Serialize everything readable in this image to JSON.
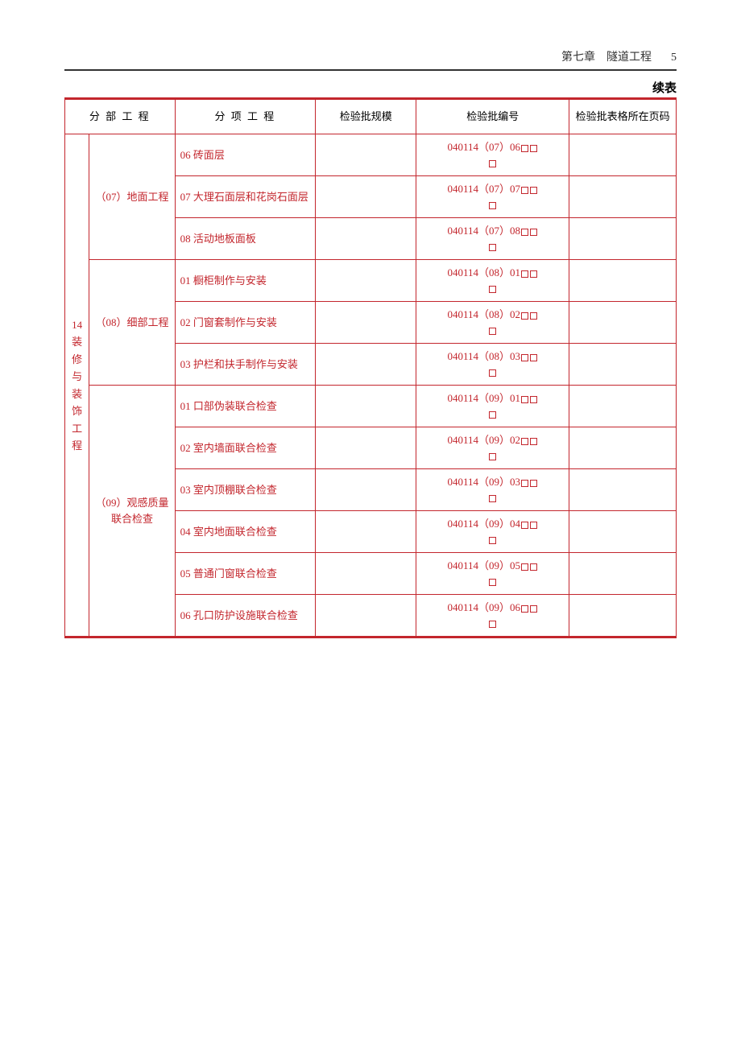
{
  "header": {
    "chapter_label": "第七章",
    "chapter_title": "隧道工程",
    "page_number": "5"
  },
  "continue_label": "续表",
  "columns": {
    "col1": "分 部 工 程",
    "col2": "分 项 工 程",
    "col3": "检验批规模",
    "col4": "检验批编号",
    "col5": "检验批表格所在页码"
  },
  "main_section": {
    "number": "14",
    "title_chars": [
      "装",
      "修",
      "与",
      "装",
      "饰",
      "工",
      "程"
    ]
  },
  "sections": [
    {
      "label": "（07）地面工程",
      "items": [
        {
          "name": "06  砖面层",
          "code": "040114（07）06"
        },
        {
          "name": "07  大理石面层和花岗石面层",
          "code": "040114（07）07"
        },
        {
          "name": "08  活动地板面板",
          "code": "040114（07）08"
        }
      ]
    },
    {
      "label": "（08）细部工程",
      "items": [
        {
          "name": "01  橱柜制作与安装",
          "code": "040114（08）01"
        },
        {
          "name": "02  门窗套制作与安装",
          "code": "040114（08）02"
        },
        {
          "name": "03  护栏和扶手制作与安装",
          "code": "040114（08）03"
        }
      ]
    },
    {
      "label": "（09）观感质量联合检查",
      "items": [
        {
          "name": "01  口部伪装联合检查",
          "code": "040114（09）01"
        },
        {
          "name": "02  室内墙面联合检查",
          "code": "040114（09）02"
        },
        {
          "name": "03  室内顶棚联合检查",
          "code": "040114（09）03"
        },
        {
          "name": "04  室内地面联合检查",
          "code": "040114（09）04"
        },
        {
          "name": "05  普通门窗联合检查",
          "code": "040114（09）05"
        },
        {
          "name": "06  孔口防护设施联合检查",
          "code": "040114（09）06"
        }
      ]
    }
  ],
  "colors": {
    "accent": "#c3262d",
    "text_black": "#000000",
    "header_rule": "#333333",
    "background": "#ffffff"
  },
  "typography": {
    "body_font": "SimSun",
    "header_font": "SimHei",
    "cell_fontsize": 13,
    "header_fontsize": 14
  }
}
